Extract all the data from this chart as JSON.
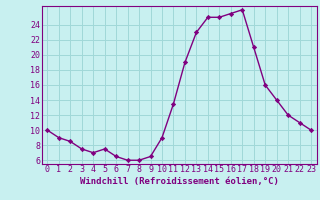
{
  "x": [
    0,
    1,
    2,
    3,
    4,
    5,
    6,
    7,
    8,
    9,
    10,
    11,
    12,
    13,
    14,
    15,
    16,
    17,
    18,
    19,
    20,
    21,
    22,
    23
  ],
  "y": [
    10.0,
    9.0,
    8.5,
    7.5,
    7.0,
    7.5,
    6.5,
    6.0,
    6.0,
    6.5,
    9.0,
    13.5,
    19.0,
    23.0,
    25.0,
    25.0,
    25.5,
    26.0,
    21.0,
    16.0,
    14.0,
    12.0,
    11.0,
    10.0
  ],
  "line_color": "#800080",
  "marker": "D",
  "marker_size": 2.2,
  "bg_color": "#c8f0f0",
  "grid_color": "#a0d8d8",
  "xlabel": "Windchill (Refroidissement éolien,°C)",
  "xlim": [
    -0.5,
    23.5
  ],
  "ylim": [
    5.5,
    26.5
  ],
  "yticks": [
    6,
    8,
    10,
    12,
    14,
    16,
    18,
    20,
    22,
    24
  ],
  "xticks": [
    0,
    1,
    2,
    3,
    4,
    5,
    6,
    7,
    8,
    9,
    10,
    11,
    12,
    13,
    14,
    15,
    16,
    17,
    18,
    19,
    20,
    21,
    22,
    23
  ],
  "xlabel_fontsize": 6.5,
  "tick_fontsize": 6,
  "line_width": 1.0
}
